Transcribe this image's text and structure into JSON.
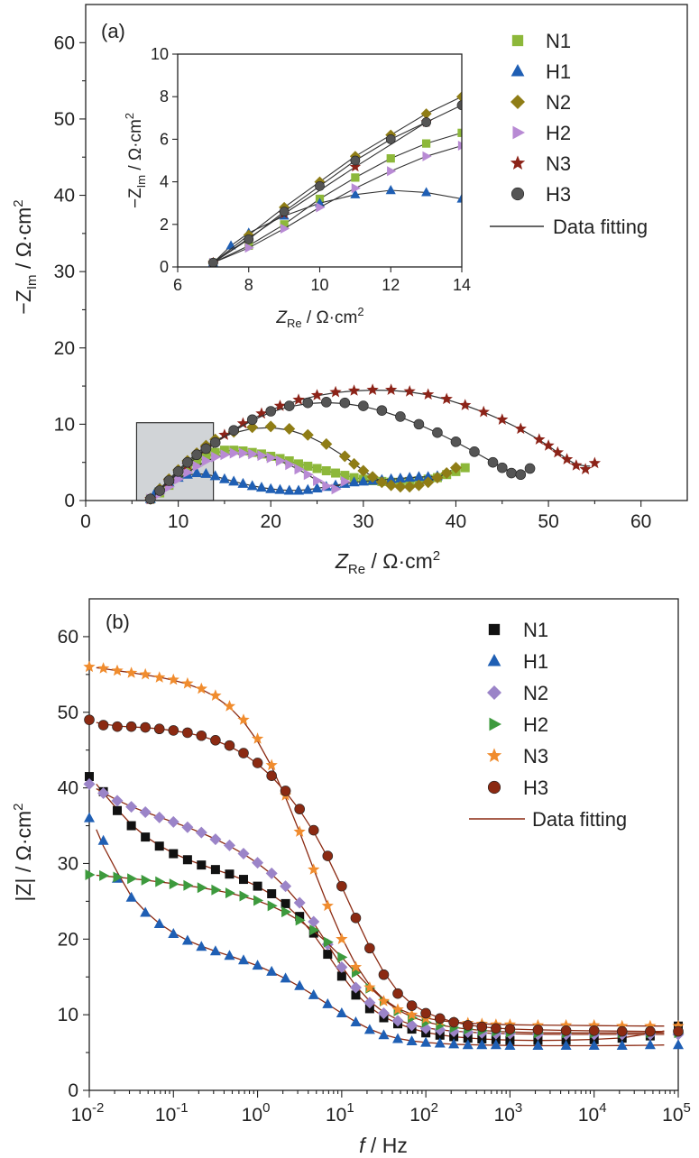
{
  "chart_data": [
    {
      "type": "scatter",
      "panel_label": "(a)",
      "xlabel_main": "Z",
      "xlabel_sub": "Re",
      "xlabel_unit": " / Ω·cm",
      "ylabel_main": "−Z",
      "ylabel_sub": "Im",
      "ylabel_unit": " / Ω·cm",
      "unit_sup": "2",
      "xlim": [
        0,
        65
      ],
      "ylim": [
        0,
        65
      ],
      "xticks": [
        "0",
        "10",
        "20",
        "30",
        "40",
        "50",
        "60"
      ],
      "yticks": [
        "0",
        "10",
        "20",
        "30",
        "40",
        "50",
        "60"
      ],
      "zoom_box": {
        "x": [
          5.5,
          13.8
        ],
        "y": [
          0,
          10.2
        ]
      },
      "legend_position": "top-right",
      "legend": [
        {
          "name": "N1",
          "marker": "square",
          "color": "#8db83a"
        },
        {
          "name": "H1",
          "marker": "triangle-up",
          "color": "#1f5fb4"
        },
        {
          "name": "N2",
          "marker": "diamond",
          "color": "#8f7d16"
        },
        {
          "name": "H2",
          "marker": "triangle-right",
          "color": "#b88ad4"
        },
        {
          "name": "N3",
          "marker": "star",
          "color": "#8c2318"
        },
        {
          "name": "H3",
          "marker": "sphere",
          "color": "#555555"
        }
      ],
      "fit_label": "Data fitting",
      "fit_color": "#333333",
      "series": [
        {
          "name": "N1",
          "x": [
            7,
            8,
            9,
            10,
            11,
            12,
            13,
            14,
            15,
            16,
            17,
            18,
            19,
            20,
            21,
            22,
            23,
            24,
            25,
            26,
            27,
            28,
            29,
            30,
            31,
            32,
            33,
            34,
            35,
            36,
            37,
            38,
            39,
            40,
            41
          ],
          "y": [
            0.2,
            1.0,
            2.0,
            3.2,
            4.2,
            5.1,
            5.8,
            6.3,
            6.6,
            6.6,
            6.5,
            6.3,
            6.1,
            5.8,
            5.5,
            5.2,
            4.8,
            4.5,
            4.2,
            3.9,
            3.6,
            3.3,
            3.0,
            2.8,
            2.6,
            2.5,
            2.4,
            2.4,
            2.5,
            2.6,
            2.8,
            3.0,
            3.4,
            3.8,
            4.3
          ]
        },
        {
          "name": "H1",
          "x": [
            7,
            7.5,
            8,
            9,
            10,
            11,
            12,
            13,
            14,
            15,
            16,
            17,
            18,
            19,
            20,
            21,
            22,
            23,
            24,
            25,
            26,
            27,
            28,
            29,
            30,
            31,
            32,
            33,
            34,
            35,
            36,
            37,
            38
          ],
          "y": [
            0.2,
            1.0,
            1.6,
            2.4,
            3.0,
            3.4,
            3.6,
            3.5,
            3.2,
            2.8,
            2.5,
            2.2,
            1.9,
            1.7,
            1.5,
            1.4,
            1.3,
            1.3,
            1.4,
            1.6,
            1.8,
            2.0,
            2.2,
            2.4,
            2.5,
            2.6,
            2.7,
            2.8,
            2.9,
            3.0,
            3.1,
            3.1,
            3.2
          ]
        },
        {
          "name": "N2",
          "x": [
            7,
            8,
            9,
            10,
            11,
            12,
            13,
            14,
            16,
            18,
            20,
            22,
            24,
            26,
            28,
            29,
            30,
            31,
            32,
            33,
            34,
            35,
            36,
            37,
            38,
            39,
            40
          ],
          "y": [
            0.2,
            1.5,
            2.8,
            4.0,
            5.2,
            6.2,
            7.2,
            8.0,
            9.0,
            9.6,
            9.7,
            9.4,
            8.6,
            7.4,
            5.8,
            4.8,
            3.9,
            3.1,
            2.4,
            2.0,
            1.8,
            1.8,
            2.0,
            2.4,
            3.0,
            3.6,
            4.3
          ]
        },
        {
          "name": "H2",
          "x": [
            7,
            8,
            9,
            10,
            11,
            12,
            13,
            14,
            15,
            16,
            17,
            18,
            19,
            20,
            21,
            22,
            23,
            24,
            25,
            26,
            27,
            28
          ],
          "y": [
            0.2,
            0.9,
            1.8,
            2.8,
            3.7,
            4.5,
            5.2,
            5.7,
            6.0,
            6.2,
            6.2,
            6.1,
            5.9,
            5.6,
            5.2,
            4.7,
            4.1,
            3.4,
            2.6,
            1.9,
            1.5,
            2.5
          ]
        },
        {
          "name": "N3",
          "x": [
            7,
            9,
            11,
            13,
            15,
            17,
            19,
            21,
            23,
            25,
            27,
            29,
            31,
            33,
            35,
            37,
            39,
            41,
            43,
            45,
            47,
            49,
            50,
            51,
            52,
            53,
            54,
            55
          ],
          "y": [
            0.2,
            2.5,
            4.7,
            6.8,
            8.6,
            10.1,
            11.4,
            12.4,
            13.2,
            13.8,
            14.2,
            14.4,
            14.5,
            14.5,
            14.3,
            13.9,
            13.3,
            12.5,
            11.6,
            10.6,
            9.4,
            8.0,
            7.2,
            6.3,
            5.4,
            4.6,
            4.1,
            4.9
          ]
        },
        {
          "name": "H3",
          "x": [
            7,
            8,
            9,
            10,
            11,
            12,
            13,
            14,
            16,
            18,
            20,
            22,
            24,
            26,
            28,
            30,
            32,
            34,
            36,
            38,
            40,
            42,
            44,
            45,
            46,
            47,
            48
          ],
          "y": [
            0.2,
            1.3,
            2.6,
            3.8,
            5.0,
            6.0,
            6.8,
            7.6,
            9.2,
            10.6,
            11.7,
            12.4,
            12.8,
            12.9,
            12.8,
            12.4,
            11.8,
            11.0,
            10.0,
            8.9,
            7.7,
            6.4,
            5.0,
            4.3,
            3.6,
            3.4,
            4.2
          ]
        }
      ],
      "inset": {
        "xlim": [
          6,
          14
        ],
        "ylim": [
          0,
          10
        ],
        "xticks": [
          "6",
          "8",
          "10",
          "12",
          "14"
        ],
        "yticks": [
          "0",
          "2",
          "4",
          "6",
          "8",
          "10"
        ]
      }
    },
    {
      "type": "scatter",
      "panel_label": "(b)",
      "xlabel_main": "f",
      "xlabel_unit": " / Hz",
      "ylabel": "|Z| / Ω·cm",
      "unit_sup": "2",
      "xscale": "log",
      "xlim": [
        0.01,
        100000
      ],
      "ylim": [
        0,
        65
      ],
      "xticks_exp": [
        "-2",
        "-1",
        "0",
        "1",
        "2",
        "3",
        "4",
        "5"
      ],
      "xtick_base": "10",
      "yticks": [
        "0",
        "10",
        "20",
        "30",
        "40",
        "50",
        "60"
      ],
      "legend_position": "top-right",
      "legend": [
        {
          "name": "N1",
          "marker": "square",
          "color": "#111111"
        },
        {
          "name": "H1",
          "marker": "triangle-up",
          "color": "#1f5fb4"
        },
        {
          "name": "N2",
          "marker": "diamond",
          "color": "#9b84c8"
        },
        {
          "name": "H2",
          "marker": "triangle-right",
          "color": "#3d9a3d"
        },
        {
          "name": "N3",
          "marker": "star",
          "color": "#f08c2e"
        },
        {
          "name": "H3",
          "marker": "sphere",
          "color": "#8b2a12"
        }
      ],
      "fit_label": "Data fitting",
      "fit_color": "#8b2a12",
      "series": [
        {
          "name": "N1",
          "x": [
            0.01,
            0.0147,
            0.0215,
            0.0316,
            0.0464,
            0.0681,
            0.1,
            0.147,
            0.215,
            0.316,
            0.464,
            0.681,
            1,
            1.47,
            2.15,
            3.16,
            4.64,
            6.81,
            10,
            14.7,
            21.5,
            31.6,
            46.4,
            68.1,
            100,
            147,
            215,
            316,
            464,
            681,
            1000,
            2150,
            4640,
            10000,
            21500,
            46400,
            100000
          ],
          "y": [
            41.5,
            39.5,
            37,
            35,
            33.5,
            32.3,
            31.3,
            30.5,
            29.8,
            29.2,
            28.6,
            27.9,
            27,
            26,
            24.7,
            23,
            20.8,
            18,
            15.1,
            12.6,
            10.8,
            9.6,
            8.8,
            8.1,
            7.6,
            7.3,
            7.1,
            6.9,
            6.8,
            6.7,
            6.6,
            6.6,
            6.6,
            6.7,
            6.9,
            7.2,
            8.5
          ]
        },
        {
          "name": "H1",
          "x": [
            0.01,
            0.0147,
            0.0215,
            0.0316,
            0.0464,
            0.0681,
            0.1,
            0.147,
            0.215,
            0.316,
            0.464,
            0.681,
            1,
            1.47,
            2.15,
            3.16,
            4.64,
            6.81,
            10,
            14.7,
            21.5,
            31.6,
            46.4,
            68.1,
            100,
            147,
            215,
            316,
            464,
            681,
            1000,
            2150,
            4640,
            10000,
            21500,
            46400,
            100000
          ],
          "y": [
            36,
            33,
            28,
            25.5,
            23.5,
            22,
            20.7,
            19.8,
            19,
            18.4,
            17.8,
            17.2,
            16.5,
            15.7,
            14.8,
            13.8,
            12.6,
            11.4,
            10.2,
            9,
            8,
            7.3,
            6.8,
            6.5,
            6.3,
            6.2,
            6.1,
            6,
            6,
            6,
            5.9,
            5.9,
            5.9,
            5.9,
            5.9,
            6,
            6
          ]
        },
        {
          "name": "N2",
          "x": [
            0.01,
            0.0147,
            0.0215,
            0.0316,
            0.0464,
            0.0681,
            0.1,
            0.147,
            0.215,
            0.316,
            0.464,
            0.681,
            1,
            1.47,
            2.15,
            3.16,
            4.64,
            6.81,
            10,
            14.7,
            21.5,
            31.6,
            46.4,
            68.1,
            100,
            147,
            215,
            316,
            464,
            681,
            1000,
            2150,
            4640,
            10000,
            21500,
            46400,
            100000
          ],
          "y": [
            40.5,
            39.3,
            38.3,
            37.5,
            36.8,
            36.1,
            35.5,
            34.8,
            34.1,
            33.2,
            32.4,
            31.3,
            30.1,
            28.7,
            27,
            24.8,
            22.3,
            19.3,
            16.3,
            13.6,
            11.6,
            10.2,
            9.2,
            8.6,
            8.2,
            8,
            7.8,
            7.7,
            7.6,
            7.5,
            7.5,
            7.4,
            7.4,
            7.4,
            7.4,
            7.4,
            7.4
          ]
        },
        {
          "name": "H2",
          "x": [
            0.01,
            0.0147,
            0.0215,
            0.0316,
            0.0464,
            0.0681,
            0.1,
            0.147,
            0.215,
            0.316,
            0.464,
            0.681,
            1,
            1.47,
            2.15,
            3.16,
            4.64,
            6.81,
            10,
            14.7,
            21.5,
            31.6,
            46.4,
            68.1,
            100,
            147,
            215,
            316,
            464,
            681,
            1000,
            2150,
            4640,
            10000,
            21500,
            46400,
            100000
          ],
          "y": [
            28.5,
            28.4,
            28.2,
            28,
            27.8,
            27.6,
            27.3,
            27.1,
            26.8,
            26.5,
            26.1,
            25.7,
            25.1,
            24.4,
            23.6,
            22.5,
            21.2,
            19.6,
            17.6,
            15.6,
            13.5,
            11.8,
            10.5,
            9.6,
            9,
            8.6,
            8.3,
            8.1,
            7.9,
            7.8,
            7.7,
            7.6,
            7.6,
            7.6,
            7.6,
            7.6,
            7.6
          ]
        },
        {
          "name": "N3",
          "x": [
            0.01,
            0.0147,
            0.0215,
            0.0316,
            0.0464,
            0.0681,
            0.1,
            0.147,
            0.215,
            0.316,
            0.464,
            0.681,
            1,
            1.47,
            2.15,
            3.16,
            4.64,
            6.81,
            10,
            14.7,
            21.5,
            31.6,
            46.4,
            68.1,
            100,
            147,
            215,
            316,
            464,
            681,
            1000,
            2150,
            4640,
            10000,
            21500,
            46400,
            100000
          ],
          "y": [
            56,
            55.8,
            55.5,
            55.2,
            55,
            54.6,
            54.3,
            53.8,
            53.1,
            52.2,
            50.8,
            49,
            46.5,
            43,
            39,
            34.2,
            29.2,
            24.4,
            20,
            16.3,
            13.6,
            11.8,
            10.7,
            10,
            9.5,
            9.2,
            9,
            8.9,
            8.8,
            8.7,
            8.7,
            8.6,
            8.6,
            8.6,
            8.5,
            8.5,
            8.5
          ]
        },
        {
          "name": "H3",
          "x": [
            0.01,
            0.0147,
            0.0215,
            0.0316,
            0.0464,
            0.0681,
            0.1,
            0.147,
            0.215,
            0.316,
            0.464,
            0.681,
            1,
            1.47,
            2.15,
            3.16,
            4.64,
            6.81,
            10,
            14.7,
            21.5,
            31.6,
            46.4,
            68.1,
            100,
            147,
            215,
            316,
            464,
            681,
            1000,
            2150,
            4640,
            10000,
            21500,
            46400,
            100000
          ],
          "y": [
            49,
            48.3,
            48.1,
            48.1,
            48,
            47.8,
            47.6,
            47.3,
            46.9,
            46.3,
            45.6,
            44.6,
            43.3,
            41.6,
            39.6,
            37.2,
            34.4,
            31,
            27,
            22.8,
            18.8,
            15.3,
            12.8,
            11.2,
            10.2,
            9.5,
            9,
            8.6,
            8.4,
            8.2,
            8.1,
            8,
            7.9,
            7.9,
            7.8,
            7.8,
            7.8
          ]
        }
      ]
    }
  ]
}
